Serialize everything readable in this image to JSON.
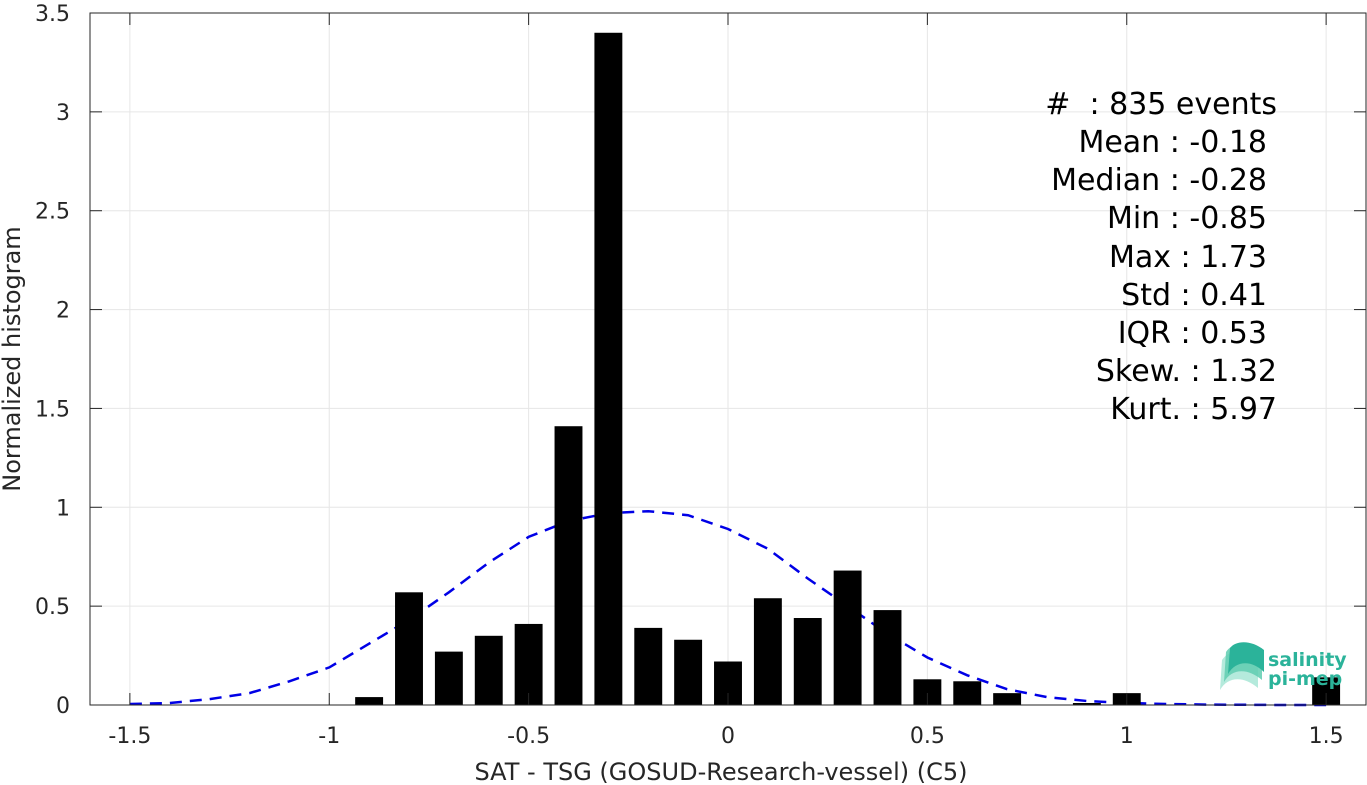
{
  "chart_data": {
    "type": "bar",
    "xlabel": "SAT - TSG (GOSUD-Research-vessel) (C5)",
    "ylabel": "Normalized histogram",
    "xlim": [
      -1.6,
      1.6
    ],
    "ylim": [
      0,
      3.5
    ],
    "xticks": [
      -1.5,
      -1,
      -0.5,
      0,
      0.5,
      1,
      1.5
    ],
    "xtick_labels": [
      "-1.5",
      "-1",
      "-0.5",
      "0",
      "0.5",
      "1",
      "1.5"
    ],
    "yticks": [
      0,
      0.5,
      1,
      1.5,
      2,
      2.5,
      3,
      3.5
    ],
    "ytick_labels": [
      "0",
      "0.5",
      "1",
      "1.5",
      "2",
      "2.5",
      "3",
      "3.5"
    ],
    "grid": true,
    "bar_color": "#000000",
    "bars": [
      {
        "x": -0.9,
        "value": 0.04
      },
      {
        "x": -0.8,
        "value": 0.57
      },
      {
        "x": -0.7,
        "value": 0.27
      },
      {
        "x": -0.6,
        "value": 0.35
      },
      {
        "x": -0.5,
        "value": 0.41
      },
      {
        "x": -0.4,
        "value": 1.41
      },
      {
        "x": -0.3,
        "value": 3.4
      },
      {
        "x": -0.2,
        "value": 0.39
      },
      {
        "x": -0.1,
        "value": 0.33
      },
      {
        "x": 0.0,
        "value": 0.22
      },
      {
        "x": 0.1,
        "value": 0.54
      },
      {
        "x": 0.2,
        "value": 0.44
      },
      {
        "x": 0.3,
        "value": 0.68
      },
      {
        "x": 0.4,
        "value": 0.48
      },
      {
        "x": 0.5,
        "value": 0.13
      },
      {
        "x": 0.6,
        "value": 0.12
      },
      {
        "x": 0.7,
        "value": 0.06
      },
      {
        "x": 0.9,
        "value": 0.01
      },
      {
        "x": 1.0,
        "value": 0.06
      },
      {
        "x": 1.5,
        "value": 0.14
      }
    ],
    "bar_width": 0.07,
    "fit_curve": {
      "style": "dashed",
      "color": "#0000e6",
      "x": [
        -1.5,
        -1.4,
        -1.3,
        -1.2,
        -1.1,
        -1.0,
        -0.9,
        -0.8,
        -0.7,
        -0.6,
        -0.5,
        -0.4,
        -0.3,
        -0.2,
        -0.1,
        0.0,
        0.1,
        0.2,
        0.3,
        0.4,
        0.5,
        0.6,
        0.7,
        0.8,
        0.9,
        1.0,
        1.1,
        1.2,
        1.3,
        1.4,
        1.5
      ],
      "y": [
        0.005,
        0.01,
        0.03,
        0.06,
        0.12,
        0.19,
        0.31,
        0.43,
        0.57,
        0.72,
        0.85,
        0.93,
        0.97,
        0.98,
        0.96,
        0.89,
        0.79,
        0.64,
        0.5,
        0.36,
        0.24,
        0.15,
        0.08,
        0.04,
        0.02,
        0.01,
        0.005,
        0.002,
        0.001,
        0.0,
        0.0
      ]
    },
    "annotations": [
      "#  : 835 events",
      "Mean : -0.18",
      "Median : -0.28",
      "Min : -0.85",
      "Max : 1.73",
      "Std : 0.41",
      "IQR : 0.53",
      "Skew. : 1.32",
      "Kurt. : 5.97"
    ]
  },
  "logo": {
    "line1": "salinity",
    "line2": "pi-mep",
    "color": "#2bb39a"
  }
}
